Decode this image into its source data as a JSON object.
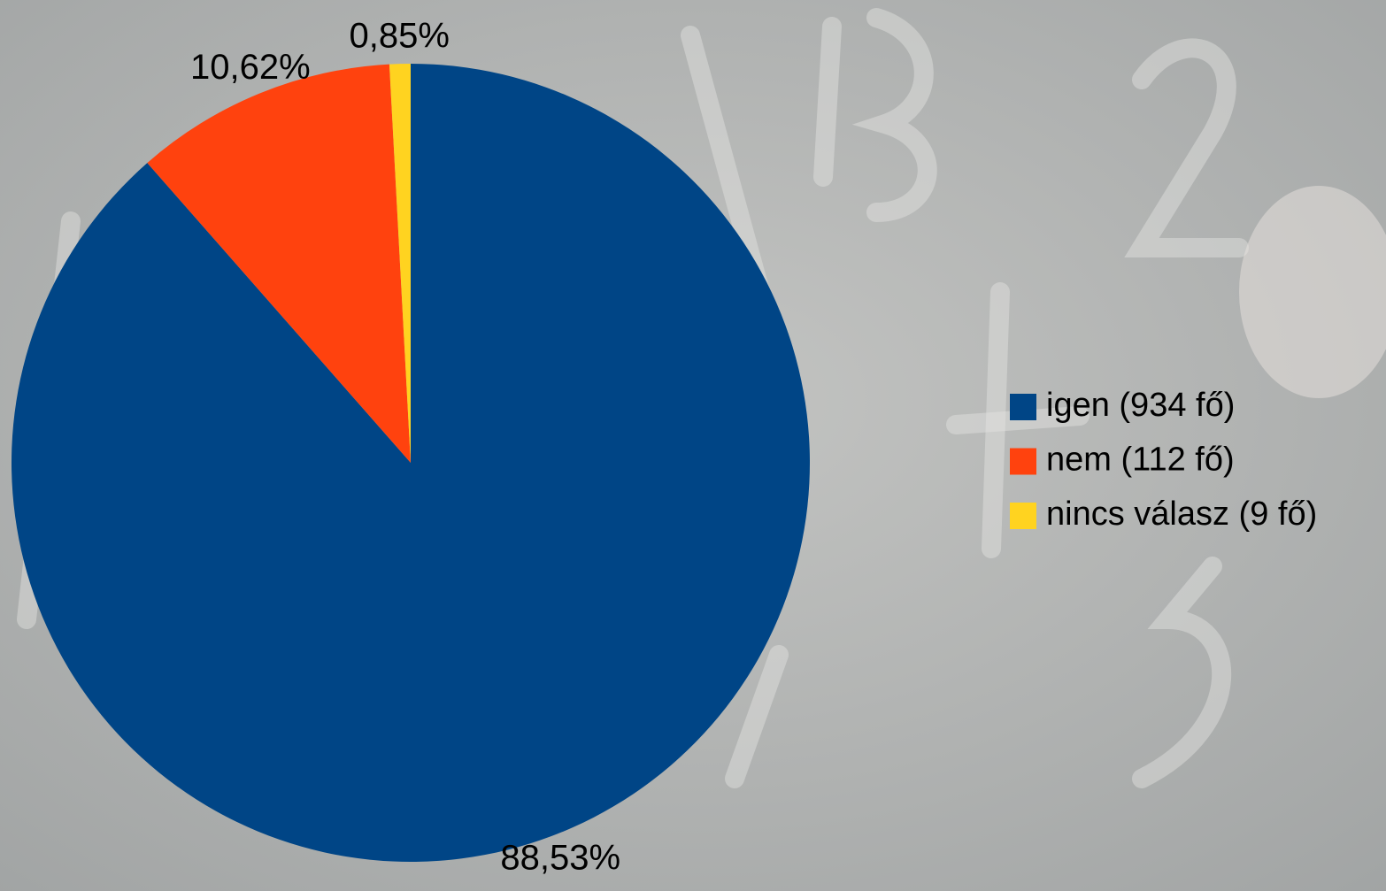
{
  "chart_data": {
    "type": "pie",
    "categories": [
      "igen (934 fő)",
      "nem (112 fő)",
      "nincs válasz (9 fő)"
    ],
    "values": [
      88.53,
      10.62,
      0.85
    ],
    "value_labels": [
      "88,53%",
      "10,62%",
      "0,85%"
    ],
    "colors": [
      "#004586",
      "#ff420e",
      "#ffd320"
    ],
    "legend": "right"
  }
}
